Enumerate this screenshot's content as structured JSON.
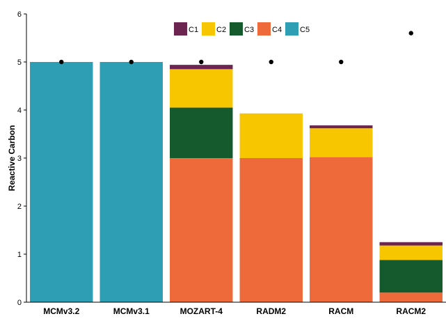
{
  "chart_data": {
    "type": "bar",
    "stacked": true,
    "title": "",
    "xlabel": "",
    "ylabel": "Reactive Carbon",
    "ylim": [
      0,
      6
    ],
    "yticks": [
      "0",
      "1",
      "2",
      "3",
      "4",
      "5",
      "6"
    ],
    "grid": false,
    "legend_position": "top-center",
    "categories": [
      "MCMv3.2",
      "MCMv3.1",
      "MOZART-4",
      "RADM2",
      "RACM",
      "RACM2"
    ],
    "series": [
      {
        "name": "C5",
        "color": "#2E9EB4",
        "values": [
          5.0,
          5.0,
          0,
          0,
          0,
          0
        ]
      },
      {
        "name": "C4",
        "color": "#EF6A3A",
        "values": [
          0,
          0,
          3.0,
          3.0,
          3.02,
          0.2
        ]
      },
      {
        "name": "C3",
        "color": "#145A2C",
        "values": [
          0,
          0,
          1.05,
          0,
          0,
          0.68
        ]
      },
      {
        "name": "C2",
        "color": "#F8C600",
        "values": [
          0,
          0,
          0.8,
          0.93,
          0.6,
          0.3
        ]
      },
      {
        "name": "C1",
        "color": "#6B2550",
        "values": [
          0,
          0,
          0.09,
          0,
          0.06,
          0.07
        ]
      }
    ],
    "legend_order": [
      "C1",
      "C2",
      "C3",
      "C4",
      "C5"
    ],
    "points": {
      "marker": "dot",
      "color": "#000000",
      "values": [
        5,
        5,
        5,
        5,
        5,
        5.6
      ]
    }
  }
}
